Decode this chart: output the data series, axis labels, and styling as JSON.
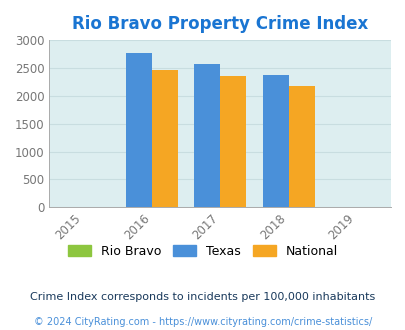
{
  "title": "Rio Bravo Property Crime Index",
  "title_color": "#1a75d2",
  "years": [
    2015,
    2016,
    2017,
    2018,
    2019
  ],
  "bar_years": [
    2016,
    2017,
    2018
  ],
  "series": {
    "Rio Bravo": {
      "values": [
        0,
        0,
        0
      ],
      "color": "#8dc63f"
    },
    "Texas": {
      "values": [
        2760,
        2565,
        2375
      ],
      "color": "#4a90d9"
    },
    "National": {
      "values": [
        2460,
        2355,
        2185
      ],
      "color": "#f5a623"
    }
  },
  "ylim": [
    0,
    3000
  ],
  "yticks": [
    0,
    500,
    1000,
    1500,
    2000,
    2500,
    3000
  ],
  "fig_bg_color": "#ffffff",
  "plot_bg_color": "#ddeef0",
  "grid_color": "#c8dde0",
  "bar_width": 0.38,
  "footer_text": "© 2024 CityRating.com - https://www.cityrating.com/crime-statistics/",
  "note_text": "Crime Index corresponds to incidents per 100,000 inhabitants",
  "note_color": "#1a3a5c",
  "footer_color": "#4a90d9",
  "tick_label_color": "#777777",
  "xlabel_color": "#777777",
  "title_fontsize": 12,
  "note_fontsize": 8,
  "footer_fontsize": 7
}
